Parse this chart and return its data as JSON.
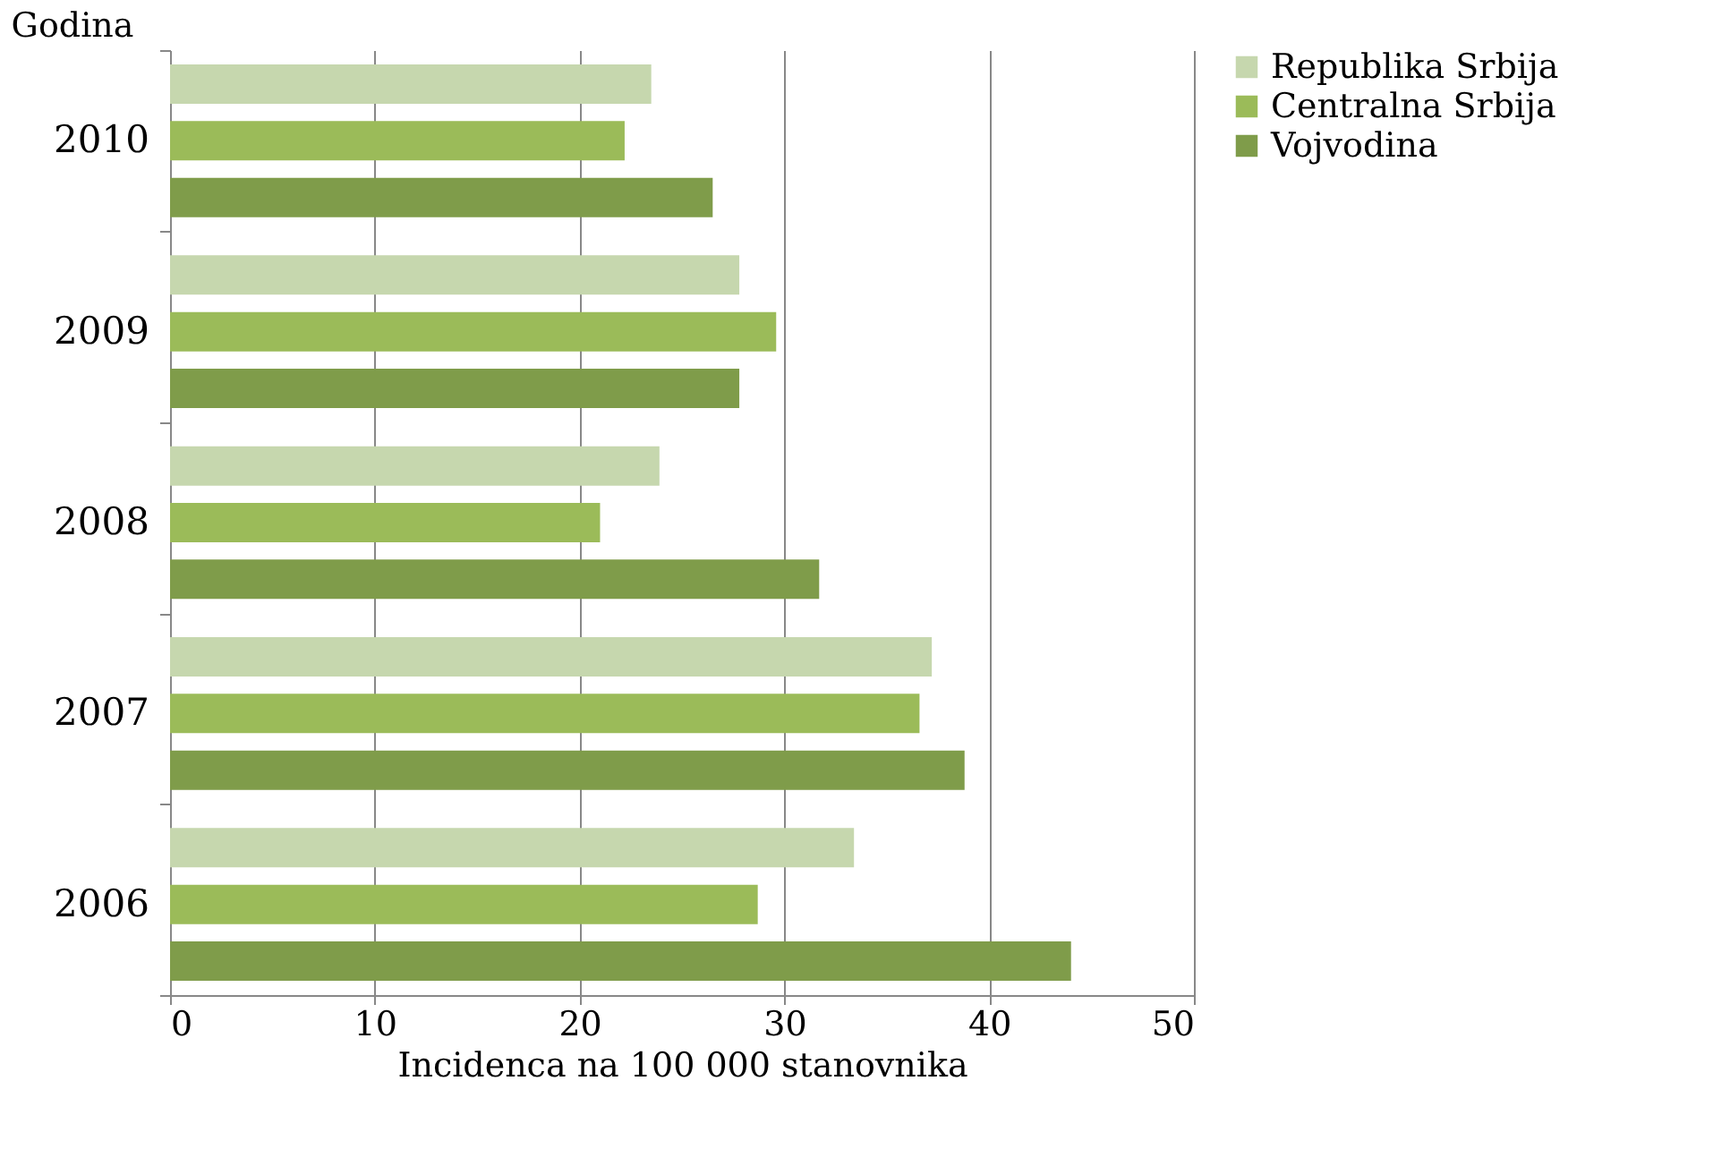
{
  "chart_data": {
    "type": "bar",
    "orientation": "horizontal",
    "xlabel": "Incidenca na 100 000 stanovnika",
    "ylabel": "Godina",
    "categories": [
      "2010",
      "2009",
      "2008",
      "2007",
      "2006"
    ],
    "series": [
      {
        "name": "Republika Srbija",
        "color": "#c6d7ae",
        "values": [
          23.5,
          27.8,
          23.9,
          37.2,
          33.4
        ]
      },
      {
        "name": "Centralna Srbija",
        "color": "#9bbb59",
        "values": [
          22.2,
          29.6,
          21.0,
          36.6,
          28.7
        ]
      },
      {
        "name": "Vojvodina",
        "color": "#7f9c4a",
        "values": [
          26.5,
          27.8,
          31.7,
          38.8,
          44.0
        ]
      }
    ],
    "xlim": [
      0,
      50
    ],
    "xticks": [
      0,
      10,
      20,
      30,
      40,
      50
    ],
    "grid": "x",
    "legend": "right"
  }
}
